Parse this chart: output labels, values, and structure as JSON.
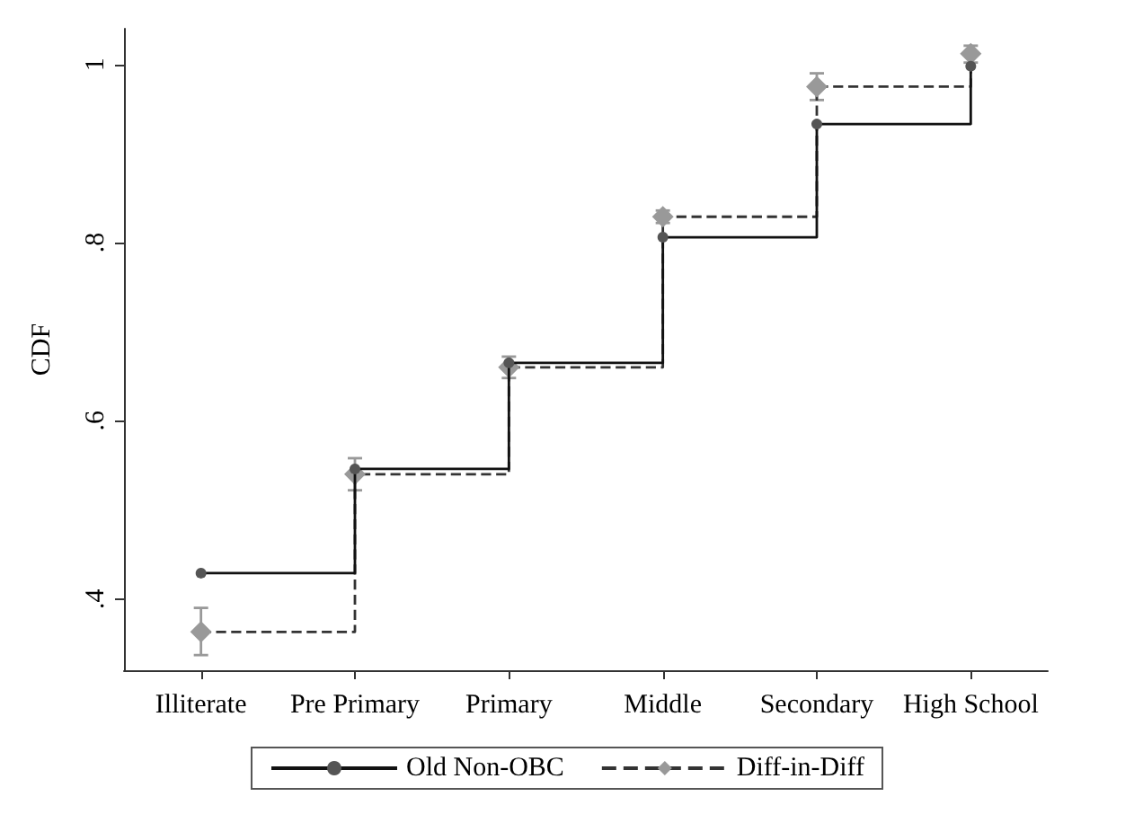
{
  "chart_data": {
    "type": "step",
    "categories": [
      "Illiterate",
      "Pre Primary",
      "Primary",
      "Middle",
      "Secondary",
      "High School"
    ],
    "ylabel": "CDF",
    "ylim": [
      0.32,
      1.04
    ],
    "yticks": [
      {
        "value": 0.4,
        "label": ".4"
      },
      {
        "value": 0.6,
        "label": ".6"
      },
      {
        "value": 0.8,
        "label": ".8"
      },
      {
        "value": 1,
        "label": "1"
      }
    ],
    "grid": false,
    "legend": "bottom",
    "series": [
      {
        "name": "Old Non-OBC",
        "color": "#555555",
        "marker": "circle",
        "line_style": "solid",
        "values": [
          0.429,
          0.546,
          0.665,
          0.806,
          0.933,
          0.998
        ]
      },
      {
        "name": "Diff-in-Diff",
        "color": "#999999",
        "marker": "diamond",
        "line_style": "dashed",
        "values": [
          0.363,
          0.54,
          0.66,
          0.829,
          0.975,
          1.012
        ],
        "errors": [
          [
            0.337,
            0.39
          ],
          [
            0.522,
            0.558
          ],
          [
            0.648,
            0.672
          ],
          [
            0.822,
            0.836
          ],
          [
            0.96,
            0.99
          ],
          [
            1.002,
            1.021
          ]
        ]
      }
    ]
  }
}
